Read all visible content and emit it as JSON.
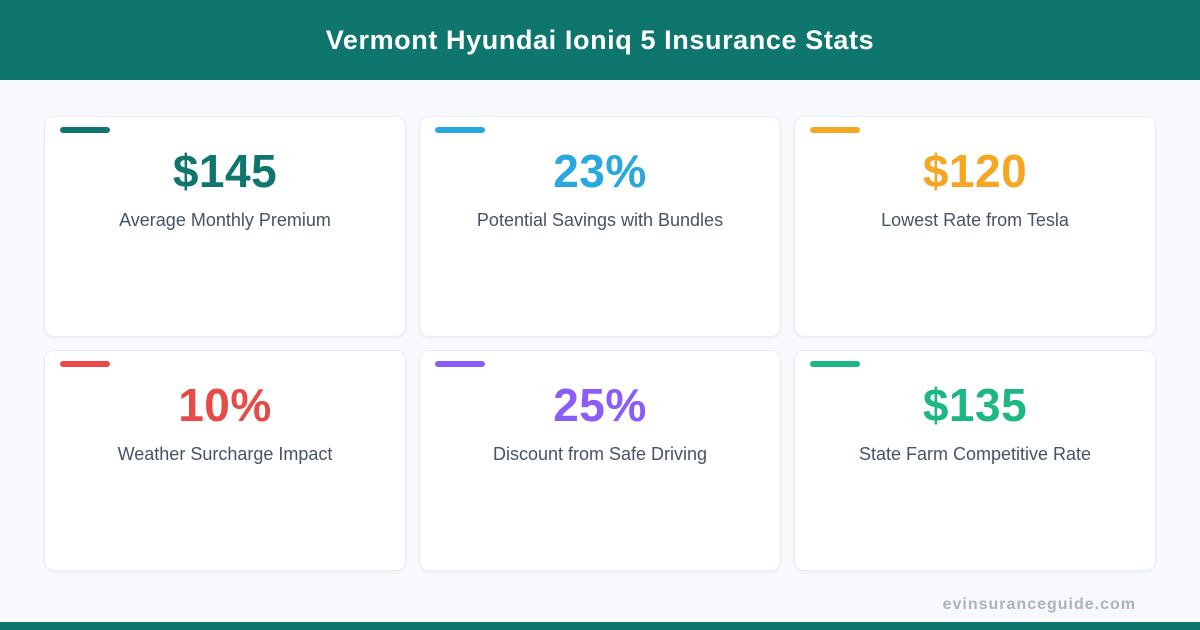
{
  "header": {
    "title": "Vermont Hyundai Ioniq 5 Insurance Stats",
    "bg_color": "#0F766E",
    "text_color": "#FFFFFF"
  },
  "cards": [
    {
      "value": "$145",
      "label": "Average Monthly Premium",
      "color": "#0F766E"
    },
    {
      "value": "23%",
      "label": "Potential Savings with Bundles",
      "color": "#29A8E0"
    },
    {
      "value": "$120",
      "label": "Lowest Rate from Tesla",
      "color": "#F5A623"
    },
    {
      "value": "10%",
      "label": "Weather Surcharge Impact",
      "color": "#E84A4A"
    },
    {
      "value": "25%",
      "label": "Discount from Safe Driving",
      "color": "#8B5CF6"
    },
    {
      "value": "$135",
      "label": "State Farm Competitive Rate",
      "color": "#1DB783"
    }
  ],
  "footer": {
    "watermark": "evinsuranceguide.com",
    "bar_color": "#0F766E"
  },
  "page": {
    "background": "#F7F9FC",
    "label_color": "#475366"
  },
  "chart_data": {
    "type": "table",
    "title": "Vermont Hyundai Ioniq 5 Insurance Stats",
    "categories": [
      "Average Monthly Premium",
      "Potential Savings with Bundles",
      "Lowest Rate from Tesla",
      "Weather Surcharge Impact",
      "Discount from Safe Driving",
      "State Farm Competitive Rate"
    ],
    "values": [
      "$145",
      "23%",
      "$120",
      "10%",
      "25%",
      "$135"
    ],
    "numeric_values": [
      145,
      23,
      120,
      10,
      25,
      135
    ],
    "units": [
      "USD",
      "percent",
      "USD",
      "percent",
      "percent",
      "USD"
    ],
    "colors": [
      "#0F766E",
      "#29A8E0",
      "#F5A623",
      "#E84A4A",
      "#8B5CF6",
      "#1DB783"
    ]
  }
}
